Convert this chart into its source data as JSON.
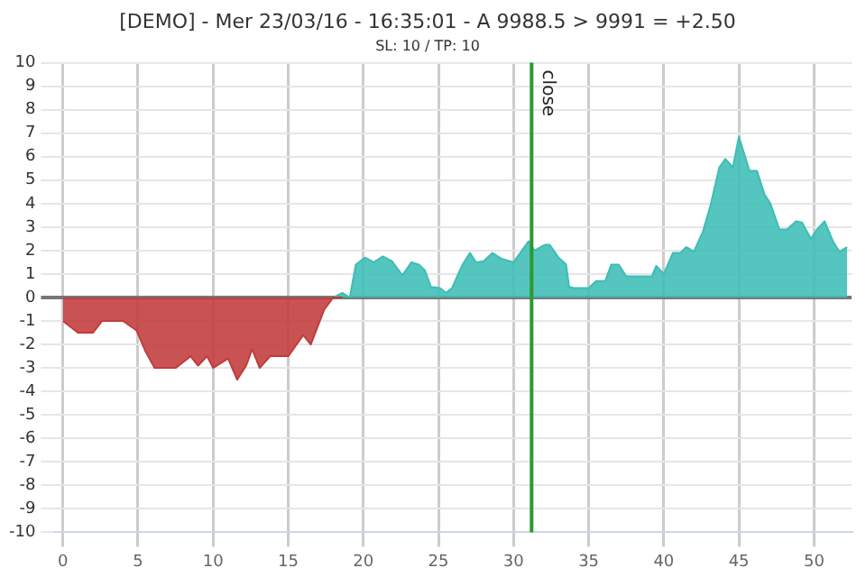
{
  "chart_data": {
    "type": "area",
    "title": "[DEMO] - Mer 23/03/16 - 16:35:01 - A 9988.5 > 9991 = +2.50",
    "subtitle": "SL: 10 / TP: 10",
    "xlim": [
      -0.5,
      52.5
    ],
    "xticks": [
      0,
      5,
      10,
      15,
      20,
      25,
      30,
      35,
      40,
      45,
      50
    ],
    "ylim": [
      -10,
      10
    ],
    "yticks": [
      -10,
      -9,
      -8,
      -7,
      -6,
      -5,
      -4,
      -3,
      -2,
      -1,
      0,
      1,
      2,
      3,
      4,
      5,
      6,
      7,
      8,
      9,
      10
    ],
    "grid": true,
    "legend": false,
    "marker": "none",
    "ref_lines": [
      {
        "axis": "x",
        "value": 31.2,
        "label": "close",
        "color": "#2e9a2e"
      }
    ],
    "series": [
      {
        "color": "#c23b3b",
        "x": [
          0,
          1,
          2,
          2.6,
          4,
          4.9,
          5.5,
          6.1,
          7.5,
          8.5,
          9,
          9.6,
          10,
          11,
          11.6,
          12.2,
          12.6,
          13.1,
          13.8,
          15,
          16,
          16.5,
          17.4,
          18,
          18.6
        ],
        "values": [
          -1,
          -1.5,
          -1.5,
          -1,
          -1,
          -1.4,
          -2.3,
          -3,
          -3,
          -2.5,
          -2.9,
          -2.5,
          -3,
          -2.6,
          -3.5,
          -2.9,
          -2.2,
          -3,
          -2.5,
          -2.5,
          -1.6,
          -2,
          -0.5,
          0,
          0
        ]
      },
      {
        "color": "#3dbdb6",
        "x": [
          18,
          18.6,
          19.1,
          19.5,
          20.1,
          20.7,
          21.3,
          21.9,
          22.6,
          23.2,
          23.7,
          24.1,
          24.5,
          25.1,
          25.5,
          25.9,
          26.6,
          27.1,
          27.5,
          28,
          28.6,
          29.2,
          30,
          31,
          31.4,
          32.1,
          32.4,
          33,
          33.5,
          33.7,
          34,
          35,
          35.5,
          36.1,
          36.5,
          37,
          37.5,
          39.2,
          39.5,
          40,
          40.6,
          41.1,
          41.5,
          42,
          42.6,
          43.1,
          43.7,
          44.1,
          44.6,
          45,
          45.7,
          46.2,
          46.7,
          47.1,
          47.7,
          48.2,
          48.8,
          49.2,
          49.8,
          50.2,
          50.7,
          51.3,
          51.7,
          52.2
        ],
        "values": [
          0,
          0.2,
          0,
          1.4,
          1.7,
          1.5,
          1.75,
          1.55,
          0.95,
          1.5,
          1.4,
          1.15,
          0.45,
          0.4,
          0.2,
          0.4,
          1.4,
          1.9,
          1.5,
          1.55,
          1.9,
          1.65,
          1.5,
          2.4,
          2,
          2.25,
          2.25,
          1.7,
          1.4,
          0.45,
          0.4,
          0.4,
          0.7,
          0.7,
          1.4,
          1.4,
          0.9,
          0.9,
          1.35,
          1,
          1.9,
          1.9,
          2.15,
          1.95,
          2.8,
          3.9,
          5.55,
          5.9,
          5.55,
          6.85,
          5.4,
          5.4,
          4.4,
          4,
          2.9,
          2.9,
          3.25,
          3.2,
          2.5,
          2.9,
          3.25,
          2.35,
          1.95,
          2.15
        ]
      }
    ]
  }
}
